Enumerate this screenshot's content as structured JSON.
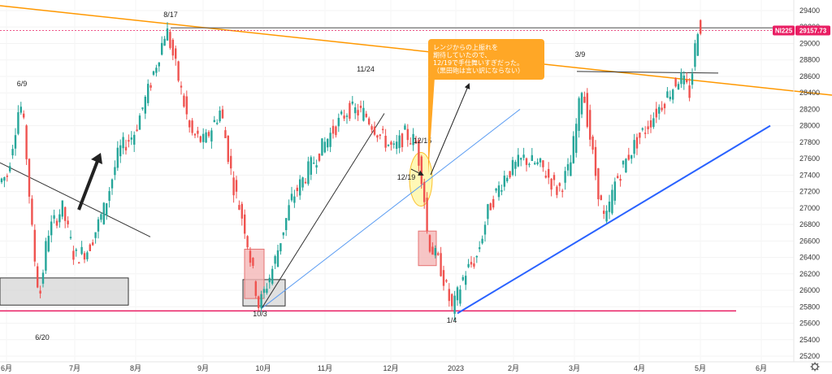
{
  "chart_data": {
    "type": "candlestick",
    "symbol": "NI225",
    "last_price": "29157.73",
    "colors": {
      "up": "#26a69a",
      "down": "#ef5350",
      "support_line": "#e91e63",
      "trend_line_orange": "#ff9800",
      "trend_line_blue": "#2962ff",
      "trend_line_lightblue": "#5b9cf2",
      "arrow": "#222222",
      "note_bg": "#ffa726",
      "box_gray": "#d6d6d6",
      "box_pink": "#f4b6b6",
      "highlight_yellow": "#fff59d",
      "price_tag_bg": "#e91e63",
      "price_tag_dark": "#4d4d4d",
      "current_line": "#555555"
    },
    "y_axis": {
      "ylim": [
        25200,
        29400
      ],
      "ticks": [
        29400,
        29200,
        29000,
        28800,
        28600,
        28400,
        28200,
        28000,
        27800,
        27600,
        27400,
        27200,
        27000,
        26800,
        26600,
        26400,
        26200,
        26000,
        25800,
        25600,
        25400,
        25200
      ]
    },
    "x_axis": {
      "tick_labels": [
        "6月",
        "7月",
        "8月",
        "9月",
        "10月",
        "11月",
        "12月",
        "2023",
        "2月",
        "3月",
        "4月",
        "5月",
        "6月"
      ]
    },
    "annotations": [
      "8/17",
      "6/9",
      "11/24",
      "3/9",
      "12/15",
      "12/19",
      "10/3",
      "6/20",
      "1/4"
    ],
    "note": {
      "lines": [
        "レンジからの上振れを",
        "期待していたので、",
        "12/19で手仕舞いすぎだった。",
        "（黒田砲は言い訳にならない）"
      ]
    },
    "price_tag": "29157.73",
    "symbol_tag": "NI225",
    "settings_icon": "gear-icon"
  }
}
